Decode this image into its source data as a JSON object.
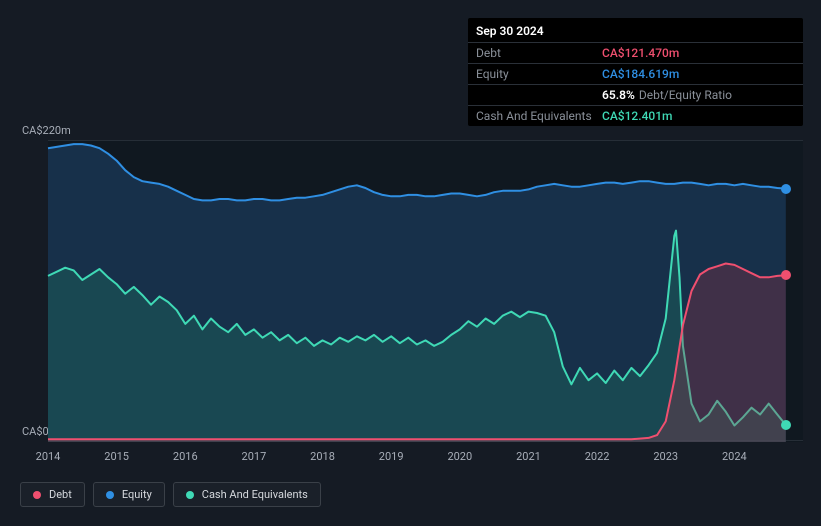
{
  "tooltip": {
    "date": "Sep 30 2024",
    "debt_label": "Debt",
    "debt_value": "CA$121.470m",
    "equity_label": "Equity",
    "equity_value": "CA$184.619m",
    "ratio_pct": "65.8%",
    "ratio_label": "Debt/Equity Ratio",
    "cash_label": "Cash And Equivalents",
    "cash_value": "CA$12.401m"
  },
  "axes": {
    "y_top_label": "CA$220m",
    "y_bottom_label": "CA$0",
    "y_min": 0,
    "y_max": 220,
    "x_min": 2014,
    "x_max": 2025,
    "x_ticks": [
      2014,
      2015,
      2016,
      2017,
      2018,
      2019,
      2020,
      2021,
      2022,
      2023,
      2024
    ]
  },
  "colors": {
    "bg": "#151b24",
    "plot_bg": "#101820",
    "grid": "rgba(80,88,100,0.35)",
    "debt": "#ef4f6f",
    "equity": "#2f8fe3",
    "cash": "#3fd9b5",
    "equity_fill": "rgba(30,70,110,0.55)",
    "cash_fill": "rgba(30,110,95,0.40)",
    "debt_fill": "rgba(160,50,70,0.30)"
  },
  "legend": {
    "items": [
      {
        "label": "Debt",
        "color": "#ef4f6f"
      },
      {
        "label": "Equity",
        "color": "#2f8fe3"
      },
      {
        "label": "Cash And Equivalents",
        "color": "#3fd9b5"
      }
    ]
  },
  "series": {
    "equity": [
      {
        "x": 2014.0,
        "y": 214
      },
      {
        "x": 2014.125,
        "y": 215
      },
      {
        "x": 2014.25,
        "y": 216
      },
      {
        "x": 2014.375,
        "y": 217
      },
      {
        "x": 2014.5,
        "y": 217
      },
      {
        "x": 2014.625,
        "y": 216
      },
      {
        "x": 2014.75,
        "y": 214
      },
      {
        "x": 2014.875,
        "y": 210
      },
      {
        "x": 2015.0,
        "y": 205
      },
      {
        "x": 2015.125,
        "y": 198
      },
      {
        "x": 2015.25,
        "y": 193
      },
      {
        "x": 2015.375,
        "y": 190
      },
      {
        "x": 2015.5,
        "y": 189
      },
      {
        "x": 2015.625,
        "y": 188
      },
      {
        "x": 2015.75,
        "y": 186
      },
      {
        "x": 2015.875,
        "y": 183
      },
      {
        "x": 2016.0,
        "y": 180
      },
      {
        "x": 2016.125,
        "y": 177
      },
      {
        "x": 2016.25,
        "y": 176
      },
      {
        "x": 2016.375,
        "y": 176
      },
      {
        "x": 2016.5,
        "y": 177
      },
      {
        "x": 2016.625,
        "y": 177
      },
      {
        "x": 2016.75,
        "y": 176
      },
      {
        "x": 2016.875,
        "y": 176
      },
      {
        "x": 2017.0,
        "y": 177
      },
      {
        "x": 2017.125,
        "y": 177
      },
      {
        "x": 2017.25,
        "y": 176
      },
      {
        "x": 2017.375,
        "y": 176
      },
      {
        "x": 2017.5,
        "y": 177
      },
      {
        "x": 2017.625,
        "y": 178
      },
      {
        "x": 2017.75,
        "y": 178
      },
      {
        "x": 2017.875,
        "y": 179
      },
      {
        "x": 2018.0,
        "y": 180
      },
      {
        "x": 2018.125,
        "y": 182
      },
      {
        "x": 2018.25,
        "y": 184
      },
      {
        "x": 2018.375,
        "y": 186
      },
      {
        "x": 2018.5,
        "y": 187
      },
      {
        "x": 2018.625,
        "y": 185
      },
      {
        "x": 2018.75,
        "y": 182
      },
      {
        "x": 2018.875,
        "y": 180
      },
      {
        "x": 2019.0,
        "y": 179
      },
      {
        "x": 2019.125,
        "y": 179
      },
      {
        "x": 2019.25,
        "y": 180
      },
      {
        "x": 2019.375,
        "y": 180
      },
      {
        "x": 2019.5,
        "y": 179
      },
      {
        "x": 2019.625,
        "y": 179
      },
      {
        "x": 2019.75,
        "y": 180
      },
      {
        "x": 2019.875,
        "y": 181
      },
      {
        "x": 2020.0,
        "y": 181
      },
      {
        "x": 2020.125,
        "y": 180
      },
      {
        "x": 2020.25,
        "y": 179
      },
      {
        "x": 2020.375,
        "y": 180
      },
      {
        "x": 2020.5,
        "y": 182
      },
      {
        "x": 2020.625,
        "y": 183
      },
      {
        "x": 2020.75,
        "y": 183
      },
      {
        "x": 2020.875,
        "y": 183
      },
      {
        "x": 2021.0,
        "y": 184
      },
      {
        "x": 2021.125,
        "y": 186
      },
      {
        "x": 2021.25,
        "y": 187
      },
      {
        "x": 2021.375,
        "y": 188
      },
      {
        "x": 2021.5,
        "y": 187
      },
      {
        "x": 2021.625,
        "y": 186
      },
      {
        "x": 2021.75,
        "y": 186
      },
      {
        "x": 2021.875,
        "y": 187
      },
      {
        "x": 2022.0,
        "y": 188
      },
      {
        "x": 2022.125,
        "y": 189
      },
      {
        "x": 2022.25,
        "y": 189
      },
      {
        "x": 2022.375,
        "y": 188
      },
      {
        "x": 2022.5,
        "y": 189
      },
      {
        "x": 2022.625,
        "y": 190
      },
      {
        "x": 2022.75,
        "y": 190
      },
      {
        "x": 2022.875,
        "y": 189
      },
      {
        "x": 2023.0,
        "y": 188
      },
      {
        "x": 2023.125,
        "y": 188
      },
      {
        "x": 2023.25,
        "y": 189
      },
      {
        "x": 2023.375,
        "y": 189
      },
      {
        "x": 2023.5,
        "y": 188
      },
      {
        "x": 2023.625,
        "y": 187
      },
      {
        "x": 2023.75,
        "y": 188
      },
      {
        "x": 2023.875,
        "y": 188
      },
      {
        "x": 2024.0,
        "y": 187
      },
      {
        "x": 2024.125,
        "y": 188
      },
      {
        "x": 2024.25,
        "y": 187
      },
      {
        "x": 2024.375,
        "y": 186
      },
      {
        "x": 2024.5,
        "y": 186
      },
      {
        "x": 2024.625,
        "y": 185
      },
      {
        "x": 2024.75,
        "y": 184.6
      }
    ],
    "cash": [
      {
        "x": 2014.0,
        "y": 121
      },
      {
        "x": 2014.125,
        "y": 124
      },
      {
        "x": 2014.25,
        "y": 127
      },
      {
        "x": 2014.375,
        "y": 125
      },
      {
        "x": 2014.5,
        "y": 118
      },
      {
        "x": 2014.625,
        "y": 122
      },
      {
        "x": 2014.75,
        "y": 126
      },
      {
        "x": 2014.875,
        "y": 120
      },
      {
        "x": 2015.0,
        "y": 115
      },
      {
        "x": 2015.125,
        "y": 108
      },
      {
        "x": 2015.25,
        "y": 113
      },
      {
        "x": 2015.375,
        "y": 107
      },
      {
        "x": 2015.5,
        "y": 100
      },
      {
        "x": 2015.625,
        "y": 106
      },
      {
        "x": 2015.75,
        "y": 102
      },
      {
        "x": 2015.875,
        "y": 96
      },
      {
        "x": 2016.0,
        "y": 86
      },
      {
        "x": 2016.125,
        "y": 92
      },
      {
        "x": 2016.25,
        "y": 82
      },
      {
        "x": 2016.375,
        "y": 90
      },
      {
        "x": 2016.5,
        "y": 84
      },
      {
        "x": 2016.625,
        "y": 80
      },
      {
        "x": 2016.75,
        "y": 86
      },
      {
        "x": 2016.875,
        "y": 78
      },
      {
        "x": 2017.0,
        "y": 82
      },
      {
        "x": 2017.125,
        "y": 76
      },
      {
        "x": 2017.25,
        "y": 80
      },
      {
        "x": 2017.375,
        "y": 74
      },
      {
        "x": 2017.5,
        "y": 78
      },
      {
        "x": 2017.625,
        "y": 72
      },
      {
        "x": 2017.75,
        "y": 76
      },
      {
        "x": 2017.875,
        "y": 70
      },
      {
        "x": 2018.0,
        "y": 74
      },
      {
        "x": 2018.125,
        "y": 71
      },
      {
        "x": 2018.25,
        "y": 76
      },
      {
        "x": 2018.375,
        "y": 73
      },
      {
        "x": 2018.5,
        "y": 77
      },
      {
        "x": 2018.625,
        "y": 74
      },
      {
        "x": 2018.75,
        "y": 78
      },
      {
        "x": 2018.875,
        "y": 73
      },
      {
        "x": 2019.0,
        "y": 77
      },
      {
        "x": 2019.125,
        "y": 72
      },
      {
        "x": 2019.25,
        "y": 76
      },
      {
        "x": 2019.375,
        "y": 71
      },
      {
        "x": 2019.5,
        "y": 74
      },
      {
        "x": 2019.625,
        "y": 70
      },
      {
        "x": 2019.75,
        "y": 73
      },
      {
        "x": 2019.875,
        "y": 78
      },
      {
        "x": 2020.0,
        "y": 82
      },
      {
        "x": 2020.125,
        "y": 88
      },
      {
        "x": 2020.25,
        "y": 84
      },
      {
        "x": 2020.375,
        "y": 90
      },
      {
        "x": 2020.5,
        "y": 86
      },
      {
        "x": 2020.625,
        "y": 92
      },
      {
        "x": 2020.75,
        "y": 95
      },
      {
        "x": 2020.875,
        "y": 91
      },
      {
        "x": 2021.0,
        "y": 95
      },
      {
        "x": 2021.125,
        "y": 94
      },
      {
        "x": 2021.25,
        "y": 92
      },
      {
        "x": 2021.375,
        "y": 80
      },
      {
        "x": 2021.5,
        "y": 55
      },
      {
        "x": 2021.625,
        "y": 42
      },
      {
        "x": 2021.75,
        "y": 54
      },
      {
        "x": 2021.875,
        "y": 45
      },
      {
        "x": 2022.0,
        "y": 50
      },
      {
        "x": 2022.125,
        "y": 43
      },
      {
        "x": 2022.25,
        "y": 52
      },
      {
        "x": 2022.375,
        "y": 45
      },
      {
        "x": 2022.5,
        "y": 54
      },
      {
        "x": 2022.625,
        "y": 48
      },
      {
        "x": 2022.75,
        "y": 56
      },
      {
        "x": 2022.875,
        "y": 65
      },
      {
        "x": 2023.0,
        "y": 90
      },
      {
        "x": 2023.125,
        "y": 150
      },
      {
        "x": 2023.15,
        "y": 154
      },
      {
        "x": 2023.2,
        "y": 120
      },
      {
        "x": 2023.25,
        "y": 70
      },
      {
        "x": 2023.375,
        "y": 28
      },
      {
        "x": 2023.5,
        "y": 15
      },
      {
        "x": 2023.625,
        "y": 20
      },
      {
        "x": 2023.75,
        "y": 30
      },
      {
        "x": 2023.875,
        "y": 22
      },
      {
        "x": 2024.0,
        "y": 12
      },
      {
        "x": 2024.125,
        "y": 18
      },
      {
        "x": 2024.25,
        "y": 25
      },
      {
        "x": 2024.375,
        "y": 20
      },
      {
        "x": 2024.5,
        "y": 28
      },
      {
        "x": 2024.625,
        "y": 20
      },
      {
        "x": 2024.75,
        "y": 12.4
      }
    ],
    "debt": [
      {
        "x": 2014.0,
        "y": 2
      },
      {
        "x": 2015.0,
        "y": 2
      },
      {
        "x": 2016.0,
        "y": 2
      },
      {
        "x": 2017.0,
        "y": 2
      },
      {
        "x": 2018.0,
        "y": 2
      },
      {
        "x": 2019.0,
        "y": 2
      },
      {
        "x": 2020.0,
        "y": 2
      },
      {
        "x": 2021.0,
        "y": 2
      },
      {
        "x": 2022.0,
        "y": 2
      },
      {
        "x": 2022.5,
        "y": 2
      },
      {
        "x": 2022.75,
        "y": 3
      },
      {
        "x": 2022.875,
        "y": 5
      },
      {
        "x": 2023.0,
        "y": 15
      },
      {
        "x": 2023.125,
        "y": 45
      },
      {
        "x": 2023.25,
        "y": 85
      },
      {
        "x": 2023.375,
        "y": 110
      },
      {
        "x": 2023.5,
        "y": 122
      },
      {
        "x": 2023.625,
        "y": 126
      },
      {
        "x": 2023.75,
        "y": 128
      },
      {
        "x": 2023.875,
        "y": 130
      },
      {
        "x": 2024.0,
        "y": 129
      },
      {
        "x": 2024.125,
        "y": 126
      },
      {
        "x": 2024.25,
        "y": 123
      },
      {
        "x": 2024.375,
        "y": 120
      },
      {
        "x": 2024.5,
        "y": 120
      },
      {
        "x": 2024.625,
        "y": 121
      },
      {
        "x": 2024.75,
        "y": 121.5
      }
    ]
  },
  "line_style": {
    "width": 2
  },
  "marker": {
    "radius": 5
  }
}
